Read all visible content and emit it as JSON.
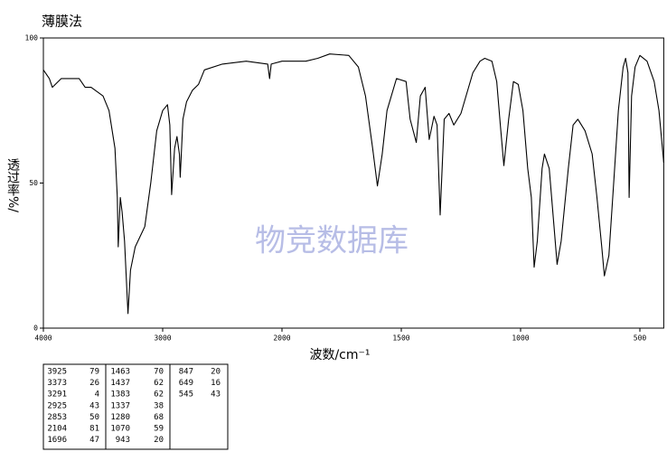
{
  "chart_data": {
    "type": "line",
    "title": "薄膜法",
    "x_label": "波数/cm⁻¹",
    "y_label": "透过率%/",
    "watermark": "物竞数据库",
    "color": "#000000",
    "x": [
      4000,
      3950,
      3925,
      3850,
      3700,
      3650,
      3600,
      3500,
      3450,
      3400,
      3380,
      3373,
      3355,
      3340,
      3320,
      3291,
      3270,
      3230,
      3150,
      3100,
      3050,
      3000,
      2960,
      2940,
      2925,
      2900,
      2880,
      2860,
      2853,
      2830,
      2800,
      2750,
      2700,
      2650,
      2500,
      2300,
      2120,
      2104,
      2090,
      2000,
      1900,
      1850,
      1800,
      1720,
      1680,
      1650,
      1620,
      1600,
      1580,
      1560,
      1520,
      1480,
      1463,
      1437,
      1420,
      1400,
      1383,
      1363,
      1350,
      1337,
      1320,
      1300,
      1280,
      1250,
      1200,
      1170,
      1150,
      1120,
      1100,
      1085,
      1070,
      1050,
      1030,
      1010,
      990,
      970,
      955,
      943,
      930,
      910,
      900,
      880,
      860,
      847,
      830,
      800,
      780,
      760,
      730,
      700,
      680,
      660,
      649,
      630,
      610,
      590,
      570,
      560,
      550,
      545,
      535,
      520,
      500,
      470,
      440,
      420,
      400
    ],
    "values": [
      89,
      86,
      83,
      86,
      86,
      83,
      83,
      80,
      75,
      62,
      45,
      28,
      45,
      40,
      30,
      5,
      20,
      28,
      35,
      50,
      68,
      75,
      77,
      70,
      46,
      62,
      66,
      60,
      52,
      72,
      78,
      82,
      84,
      89,
      91,
      92,
      91,
      86,
      91,
      92,
      92,
      93,
      94.5,
      94,
      90,
      80,
      62,
      49,
      60,
      75,
      86,
      85,
      72,
      64,
      80,
      83,
      65,
      73,
      70,
      39,
      72,
      74,
      70,
      74,
      88,
      92,
      93,
      92,
      85,
      70,
      56,
      72,
      85,
      84,
      75,
      55,
      45,
      21,
      30,
      55,
      60,
      55,
      35,
      22,
      30,
      55,
      70,
      72,
      68,
      60,
      45,
      28,
      18,
      25,
      50,
      75,
      90,
      93,
      88,
      45,
      80,
      90,
      94,
      92,
      85,
      75,
      57
    ],
    "xlim": [
      4000,
      400
    ],
    "xticks": [
      4000,
      3000,
      2000,
      1500,
      1000,
      500
    ],
    "ylim": [
      0,
      100
    ],
    "yticks": [
      0,
      50,
      100
    ]
  },
  "peak_table": {
    "columns": [
      [
        [
          3925,
          79
        ],
        [
          3373,
          26
        ],
        [
          3291,
          4
        ],
        [
          2925,
          43
        ],
        [
          2853,
          50
        ],
        [
          2104,
          81
        ],
        [
          1696,
          47
        ]
      ],
      [
        [
          1463,
          70
        ],
        [
          1437,
          62
        ],
        [
          1383,
          62
        ],
        [
          1337,
          38
        ],
        [
          1280,
          68
        ],
        [
          1070,
          59
        ],
        [
          943,
          20
        ]
      ],
      [
        [
          847,
          20
        ],
        [
          649,
          16
        ],
        [
          545,
          43
        ]
      ]
    ]
  }
}
